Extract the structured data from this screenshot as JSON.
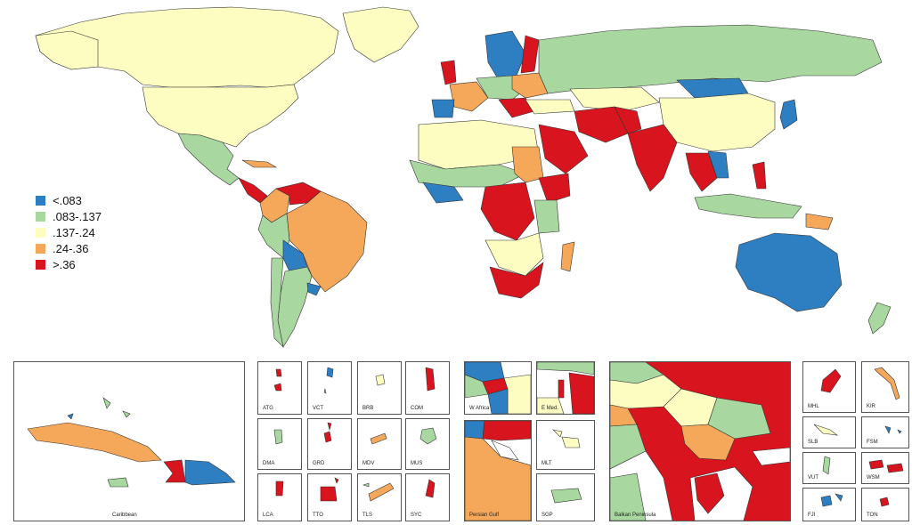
{
  "colors": {
    "blue": "#2e7ec2",
    "green": "#a8d89f",
    "yellow": "#fdfdc2",
    "orange": "#f5a85a",
    "red": "#d8141f",
    "background": "#ffffff"
  },
  "legend": {
    "items": [
      {
        "label": "<.083",
        "color": "#2e7ec2"
      },
      {
        "label": ".083-.137",
        "color": "#a8d89f"
      },
      {
        "label": ".137-.24",
        "color": "#fdfdc2"
      },
      {
        "label": ".24-.36",
        "color": "#f5a85a"
      },
      {
        "label": ">.36",
        "color": "#d8141f"
      }
    ]
  },
  "insets": {
    "caribbean": "Caribbean",
    "atg": "ATG",
    "vct": "VCT",
    "brb": "BRB",
    "com": "COM",
    "dma": "DMA",
    "grd": "GRD",
    "mdv": "MDV",
    "mus": "MUS",
    "lca": "LCA",
    "tto": "TTO",
    "tls": "TLS",
    "syc": "SYC",
    "w_africa": "W Africa",
    "e_med": "E Med.",
    "persian_gulf": "Persian Gulf",
    "mlt": "MLT",
    "sgp": "SGP",
    "balkan": "Balkan Peninsula",
    "mhl": "MHL",
    "kir": "KIR",
    "slb": "SLB",
    "fsm": "FSM",
    "vut": "VUT",
    "wsm": "WSM",
    "fji": "FJI",
    "ton": "TON"
  }
}
